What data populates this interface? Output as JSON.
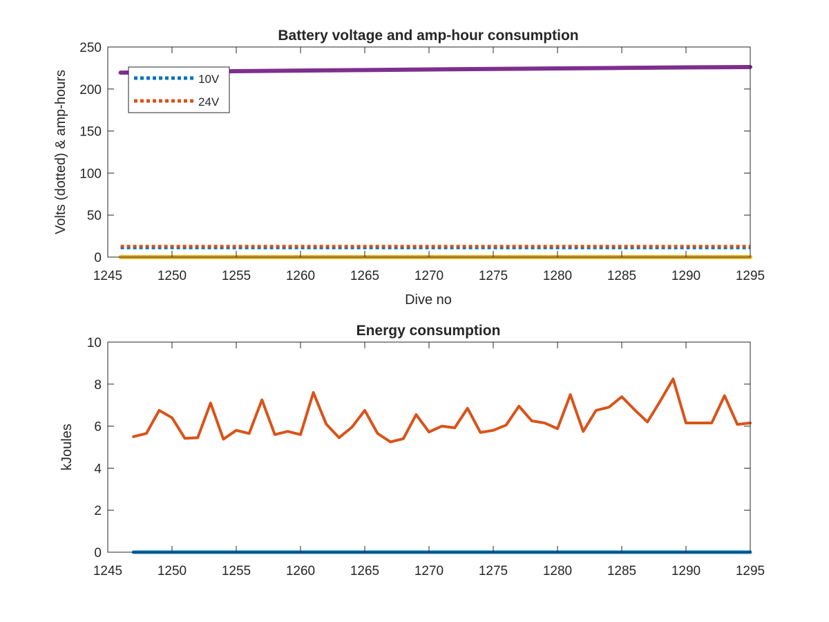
{
  "chart_data": [
    {
      "type": "line",
      "title": "Battery voltage and amp-hour consumption",
      "xlabel": "Dive no",
      "ylabel": "Volts (dotted) & amp-hours",
      "xlim": [
        1245,
        1295
      ],
      "ylim": [
        0,
        250
      ],
      "xticks": [
        1245,
        1250,
        1255,
        1260,
        1265,
        1270,
        1275,
        1280,
        1285,
        1290,
        1295
      ],
      "yticks": [
        0,
        50,
        100,
        150,
        200,
        250
      ],
      "grid": false,
      "legend": {
        "placement": "top-left",
        "entries": [
          {
            "label": "10V",
            "color": "#0072BD",
            "style": "dotted"
          },
          {
            "label": "24V",
            "color": "#D95319",
            "style": "dotted"
          }
        ]
      },
      "series": [
        {
          "name": "10V",
          "color": "#0072BD",
          "style": "dotted",
          "x": [
            1246,
            1295
          ],
          "y": [
            11,
            11
          ]
        },
        {
          "name": "24V",
          "color": "#D95319",
          "style": "dotted",
          "x": [
            1246,
            1295
          ],
          "y": [
            13,
            13
          ]
        },
        {
          "color": "#EDB120",
          "style": "solid",
          "x": [
            1246,
            1295
          ],
          "y": [
            0,
            0
          ]
        },
        {
          "color": "#7E2F8E",
          "style": "solid",
          "x": [
            1246,
            1250,
            1255,
            1260,
            1265,
            1270,
            1275,
            1280,
            1285,
            1290,
            1295
          ],
          "y": [
            219.5,
            220.3,
            221.2,
            221.9,
            222.6,
            223.3,
            223.9,
            224.5,
            225.1,
            225.7,
            226.2
          ]
        }
      ]
    },
    {
      "type": "line",
      "title": "Energy consumption",
      "xlabel": "",
      "ylabel": "kJoules",
      "xlim": [
        1245,
        1295
      ],
      "ylim": [
        0,
        10
      ],
      "xticks": [
        1245,
        1250,
        1255,
        1260,
        1265,
        1270,
        1275,
        1280,
        1285,
        1290,
        1295
      ],
      "yticks": [
        0,
        2,
        4,
        6,
        8,
        10
      ],
      "grid": false,
      "series": [
        {
          "color": "#0072BD",
          "style": "solid",
          "x": [
            1247,
            1295
          ],
          "y": [
            0,
            0
          ]
        },
        {
          "color": "#D95319",
          "style": "solid",
          "x": [
            1247,
            1248,
            1249,
            1250,
            1251,
            1252,
            1253,
            1254,
            1255,
            1256,
            1257,
            1258,
            1259,
            1260,
            1261,
            1262,
            1263,
            1264,
            1265,
            1266,
            1267,
            1268,
            1269,
            1270,
            1271,
            1272,
            1273,
            1274,
            1275,
            1276,
            1277,
            1278,
            1279,
            1280,
            1281,
            1282,
            1283,
            1284,
            1285,
            1286,
            1287,
            1288,
            1289,
            1290,
            1291,
            1292,
            1293,
            1294,
            1295
          ],
          "y": [
            5.5,
            5.65,
            6.75,
            6.4,
            5.42,
            5.45,
            7.1,
            5.38,
            5.8,
            5.65,
            7.25,
            5.6,
            5.75,
            5.6,
            7.6,
            6.1,
            5.45,
            5.95,
            6.75,
            5.65,
            5.25,
            5.4,
            6.55,
            5.72,
            6.0,
            5.92,
            6.85,
            5.7,
            5.8,
            6.05,
            6.95,
            6.25,
            6.15,
            5.88,
            7.5,
            5.75,
            6.75,
            6.9,
            7.4,
            6.78,
            6.2,
            7.2,
            8.25,
            6.15,
            6.15,
            6.15,
            7.45,
            6.08,
            6.15
          ]
        }
      ]
    }
  ]
}
